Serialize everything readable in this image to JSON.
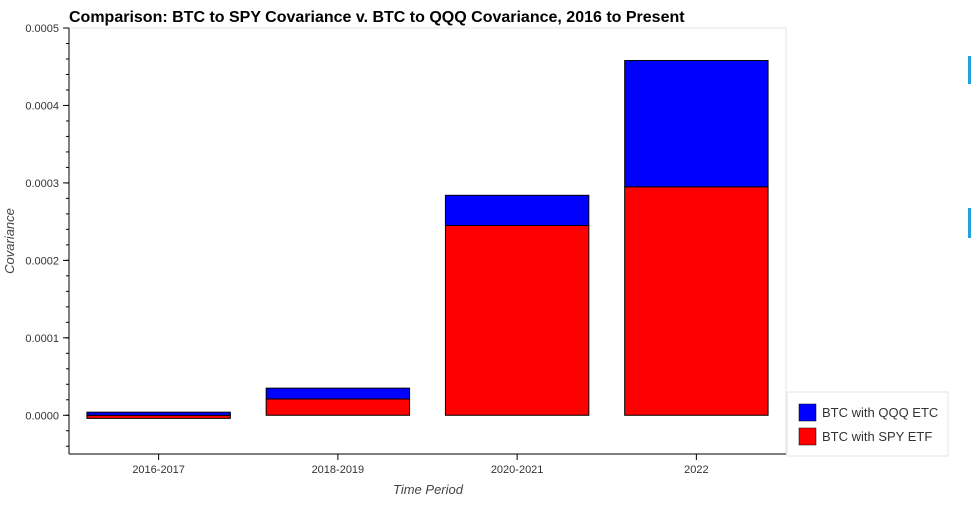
{
  "chart_data": {
    "type": "bar",
    "stacked": true,
    "title": "Comparison: BTC to SPY Covariance v. BTC to QQQ Covariance, 2016 to Present",
    "xlabel": "Time Period",
    "ylabel": "Covariance",
    "categories": [
      "2016-2017",
      "2018-2019",
      "2020-2021",
      "2022"
    ],
    "series": [
      {
        "name": "BTC with SPY ETF",
        "color": "#ff0000",
        "values": [
          -4e-06,
          2.1e-05,
          0.000245,
          0.000295
        ]
      },
      {
        "name": "BTC with QQQ ETC",
        "color": "#0000ff",
        "values": [
          4e-06,
          1.4e-05,
          3.9e-05,
          0.000163
        ]
      }
    ],
    "ylim": [
      -5e-05,
      0.0005
    ],
    "yticks": [
      "0.0000",
      "0.0001",
      "0.0002",
      "0.0003",
      "0.0004",
      "0.0005"
    ],
    "legend_position": "bottom-right",
    "grid": false
  },
  "colors": {
    "edge_tab": "#1fa3e0"
  }
}
